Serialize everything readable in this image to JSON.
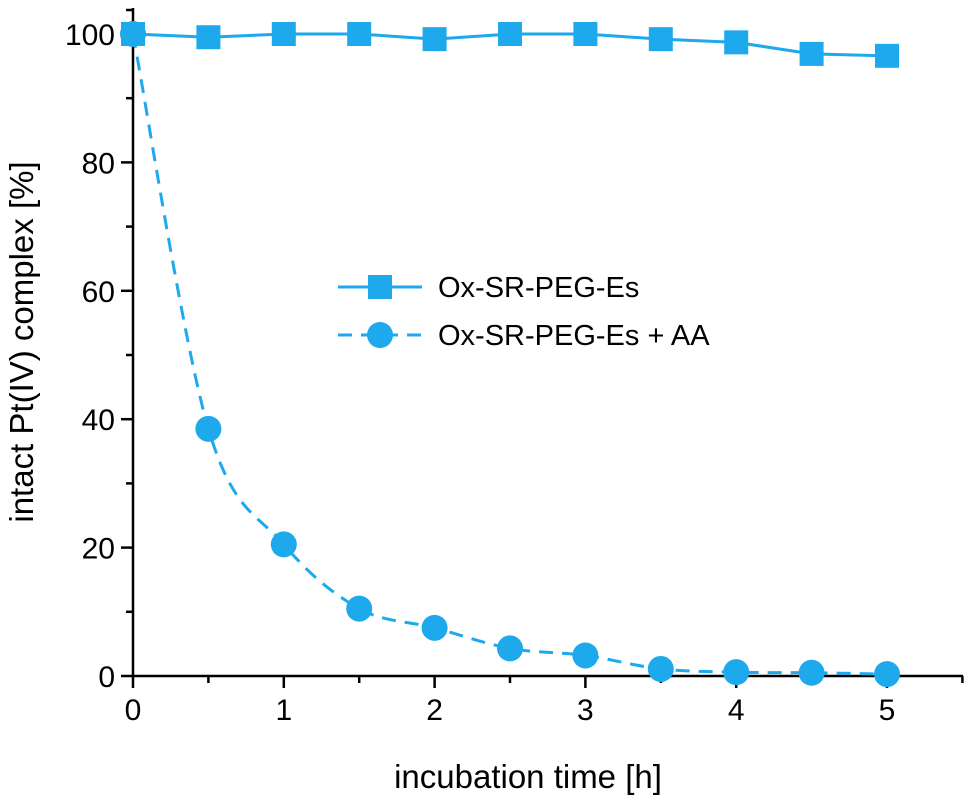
{
  "chart_data": {
    "type": "line",
    "xlabel": "incubation time [h]",
    "ylabel": "intact Pt(IV) complex [%]",
    "xlim": [
      0,
      5.5
    ],
    "ylim": [
      0,
      100
    ],
    "x_ticks": [
      0,
      1,
      2,
      3,
      4,
      5
    ],
    "y_ticks": [
      0,
      20,
      40,
      60,
      80,
      100
    ],
    "grid": false,
    "legend_position": "center-right",
    "color": "#1ea9ec",
    "series": [
      {
        "name": "Ox-SR-PEG-Es",
        "marker": "square",
        "line_style": "solid",
        "x": [
          0,
          0.5,
          1,
          1.5,
          2,
          2.5,
          3,
          3.5,
          4,
          4.5,
          5
        ],
        "values": [
          100,
          99.5,
          100,
          100,
          99.2,
          100,
          100,
          99.2,
          98.7,
          96.9,
          96.6
        ]
      },
      {
        "name": "Ox-SR-PEG-Es + AA",
        "marker": "circle",
        "line_style": "dashed",
        "x": [
          0,
          0.5,
          1,
          1.5,
          2,
          2.5,
          3,
          3.5,
          4,
          4.5,
          5
        ],
        "values": [
          100,
          38.5,
          20.5,
          10.5,
          7.5,
          4.3,
          3.2,
          1.1,
          0.6,
          0.5,
          0.3
        ]
      }
    ]
  }
}
